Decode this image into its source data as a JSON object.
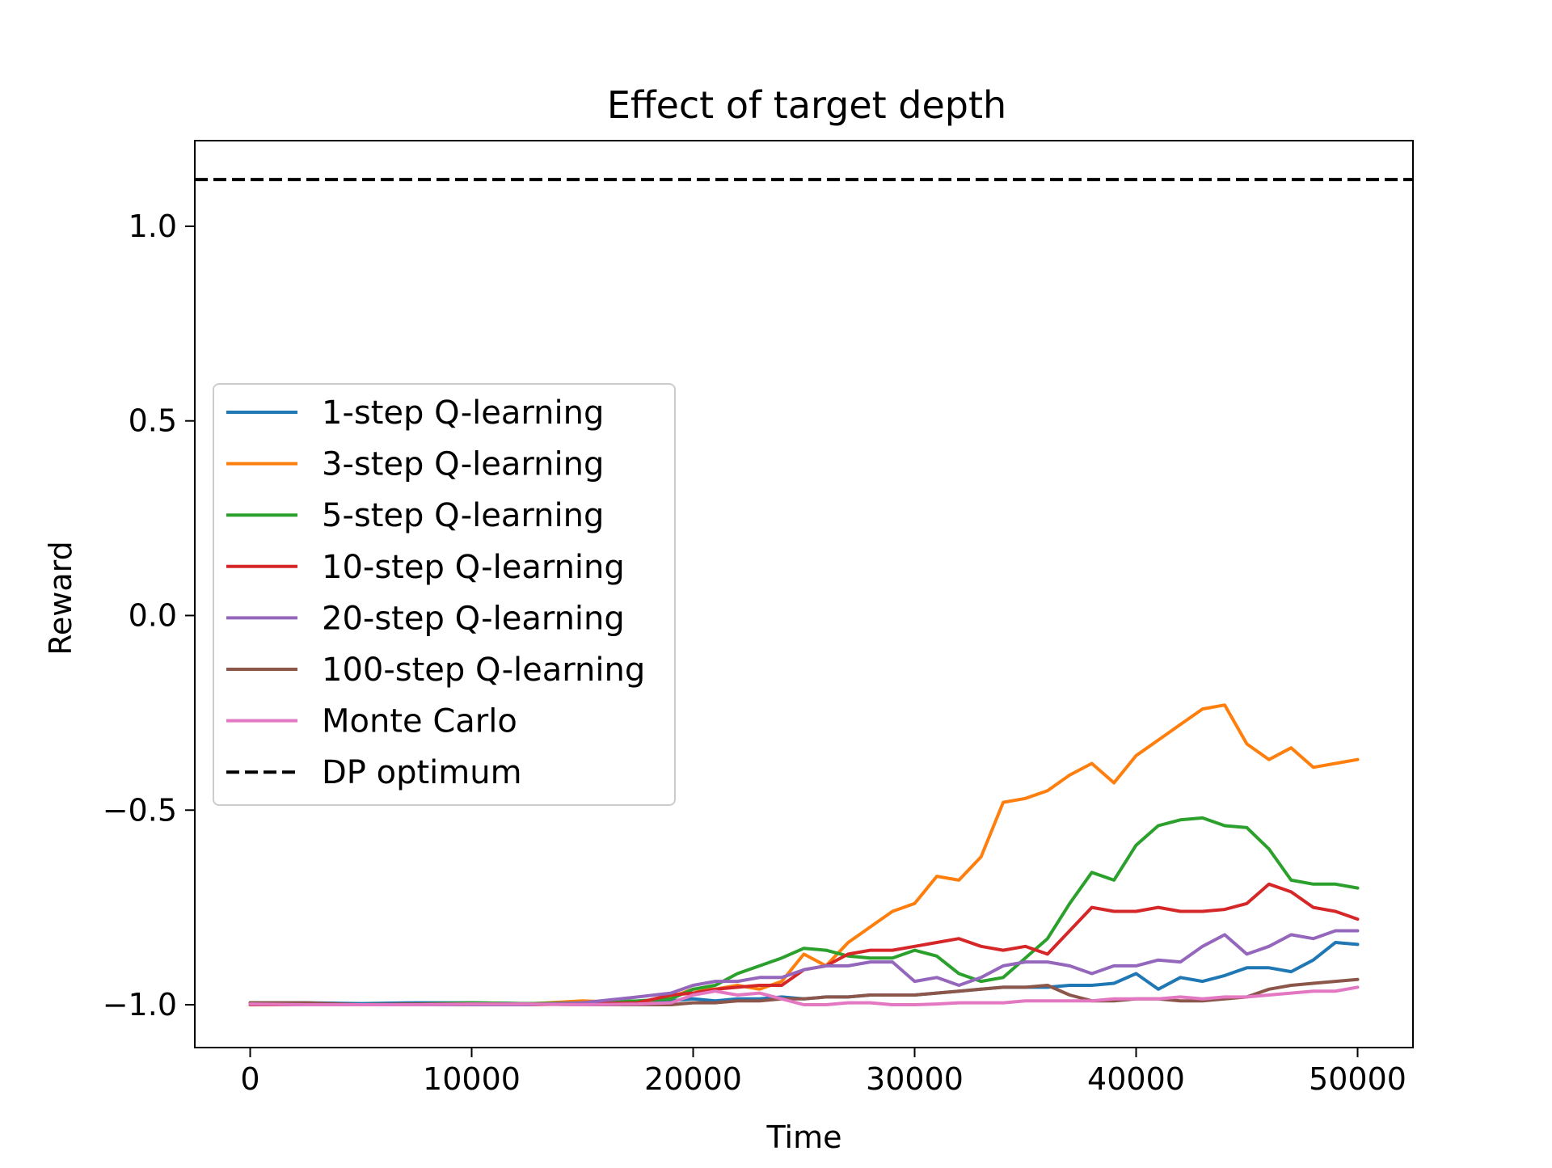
{
  "chart_data": {
    "type": "line",
    "title": "Effect of target depth",
    "xlabel": "Time",
    "ylabel": "Reward",
    "xlim": [
      -2500,
      52500
    ],
    "ylim": [
      -1.11,
      1.22
    ],
    "xticks": [
      0,
      10000,
      20000,
      30000,
      40000,
      50000
    ],
    "xtick_labels": [
      "0",
      "10000",
      "20000",
      "30000",
      "40000",
      "50000"
    ],
    "yticks": [
      -1.0,
      -0.5,
      0.0,
      0.5,
      1.0
    ],
    "ytick_labels": [
      "−1.0",
      "−0.5",
      "0.0",
      "0.5",
      "1.0"
    ],
    "grid": false,
    "legend_position": "center-left",
    "x": [
      0,
      2500,
      5000,
      7500,
      10000,
      12500,
      15000,
      17500,
      19000,
      20000,
      21000,
      22000,
      23000,
      24000,
      25000,
      26000,
      27000,
      28000,
      29000,
      30000,
      31000,
      32000,
      33000,
      34000,
      35000,
      36000,
      37000,
      38000,
      39000,
      40000,
      41000,
      42000,
      43000,
      44000,
      45000,
      46000,
      47000,
      48000,
      49000,
      50000
    ],
    "series": [
      {
        "name": "1-step Q-learning",
        "color": "#1f77b4",
        "values": [
          -0.995,
          -0.995,
          -0.997,
          -0.995,
          -0.995,
          -0.997,
          -0.995,
          -0.995,
          -0.99,
          -0.985,
          -0.99,
          -0.985,
          -0.985,
          -0.98,
          -0.985,
          -0.98,
          -0.98,
          -0.975,
          -0.975,
          -0.975,
          -0.97,
          -0.965,
          -0.96,
          -0.955,
          -0.955,
          -0.955,
          -0.95,
          -0.95,
          -0.945,
          -0.92,
          -0.96,
          -0.93,
          -0.94,
          -0.925,
          -0.905,
          -0.905,
          -0.915,
          -0.885,
          -0.84,
          -0.845
        ]
      },
      {
        "name": "3-step Q-learning",
        "color": "#ff7f0e",
        "values": [
          -1.0,
          -1.0,
          -1.0,
          -1.0,
          -1.0,
          -0.998,
          -0.99,
          -0.995,
          -0.98,
          -0.96,
          -0.96,
          -0.95,
          -0.96,
          -0.94,
          -0.87,
          -0.9,
          -0.84,
          -0.8,
          -0.76,
          -0.74,
          -0.67,
          -0.68,
          -0.62,
          -0.48,
          -0.47,
          -0.45,
          -0.41,
          -0.38,
          -0.43,
          -0.36,
          -0.32,
          -0.28,
          -0.24,
          -0.23,
          -0.33,
          -0.37,
          -0.34,
          -0.39,
          -0.38,
          -0.37
        ]
      },
      {
        "name": "5-step Q-learning",
        "color": "#2ca02c",
        "values": [
          -0.995,
          -0.998,
          -1.0,
          -0.998,
          -0.995,
          -0.997,
          -0.995,
          -0.99,
          -0.985,
          -0.96,
          -0.95,
          -0.92,
          -0.9,
          -0.88,
          -0.855,
          -0.86,
          -0.875,
          -0.88,
          -0.88,
          -0.86,
          -0.875,
          -0.92,
          -0.94,
          -0.93,
          -0.88,
          -0.83,
          -0.74,
          -0.66,
          -0.68,
          -0.59,
          -0.54,
          -0.525,
          -0.52,
          -0.54,
          -0.545,
          -0.6,
          -0.68,
          -0.69,
          -0.69,
          -0.7
        ]
      },
      {
        "name": "10-step Q-learning",
        "color": "#d62728",
        "values": [
          -1.0,
          -1.0,
          -1.0,
          -1.0,
          -1.0,
          -1.0,
          -0.998,
          -0.995,
          -0.975,
          -0.97,
          -0.96,
          -0.955,
          -0.95,
          -0.95,
          -0.91,
          -0.9,
          -0.87,
          -0.86,
          -0.86,
          -0.85,
          -0.84,
          -0.83,
          -0.85,
          -0.86,
          -0.85,
          -0.87,
          -0.81,
          -0.75,
          -0.76,
          -0.76,
          -0.75,
          -0.76,
          -0.76,
          -0.755,
          -0.74,
          -0.69,
          -0.71,
          -0.75,
          -0.76,
          -0.78
        ]
      },
      {
        "name": "20-step Q-learning",
        "color": "#9467bd",
        "values": [
          -0.998,
          -1.0,
          -1.0,
          -1.0,
          -1.0,
          -1.0,
          -0.995,
          -0.98,
          -0.97,
          -0.95,
          -0.94,
          -0.94,
          -0.93,
          -0.93,
          -0.91,
          -0.9,
          -0.9,
          -0.89,
          -0.89,
          -0.94,
          -0.93,
          -0.95,
          -0.93,
          -0.9,
          -0.89,
          -0.89,
          -0.9,
          -0.92,
          -0.9,
          -0.9,
          -0.885,
          -0.89,
          -0.85,
          -0.82,
          -0.87,
          -0.85,
          -0.82,
          -0.83,
          -0.81,
          -0.81
        ]
      },
      {
        "name": "100-step Q-learning",
        "color": "#8c564b",
        "values": [
          -0.995,
          -0.995,
          -1.0,
          -0.998,
          -0.998,
          -0.998,
          -1.0,
          -1.0,
          -1.0,
          -0.995,
          -0.995,
          -0.99,
          -0.99,
          -0.985,
          -0.985,
          -0.98,
          -0.98,
          -0.975,
          -0.975,
          -0.975,
          -0.97,
          -0.965,
          -0.96,
          -0.955,
          -0.955,
          -0.95,
          -0.975,
          -0.99,
          -0.99,
          -0.985,
          -0.985,
          -0.99,
          -0.99,
          -0.985,
          -0.98,
          -0.96,
          -0.95,
          -0.945,
          -0.94,
          -0.935
        ]
      },
      {
        "name": "Monte Carlo",
        "color": "#e377c2",
        "values": [
          -0.998,
          -1.0,
          -1.0,
          -1.0,
          -0.998,
          -0.998,
          -1.0,
          -0.998,
          -0.995,
          -0.975,
          -0.965,
          -0.975,
          -0.97,
          -0.985,
          -1.0,
          -1.0,
          -0.995,
          -0.995,
          -1.0,
          -1.0,
          -0.998,
          -0.995,
          -0.995,
          -0.995,
          -0.99,
          -0.99,
          -0.99,
          -0.99,
          -0.985,
          -0.985,
          -0.985,
          -0.98,
          -0.985,
          -0.98,
          -0.98,
          -0.975,
          -0.97,
          -0.965,
          -0.965,
          -0.955
        ]
      }
    ],
    "reference_lines": [
      {
        "name": "DP optimum",
        "y": 1.12,
        "style": "dashed",
        "color": "#000000"
      }
    ]
  }
}
